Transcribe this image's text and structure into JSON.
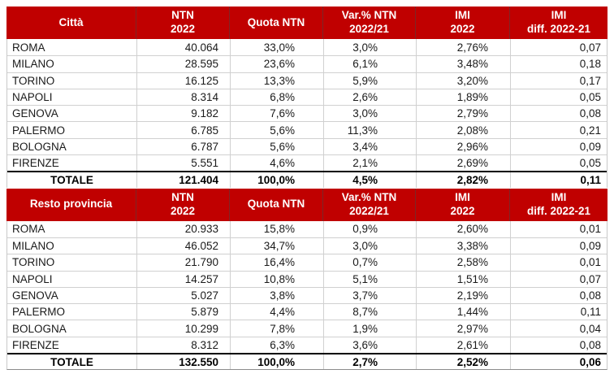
{
  "colors": {
    "header_bg": "#C00000",
    "header_text": "#FFFFFF",
    "body_text": "#1A1A1A",
    "grid_line": "#D0D0D0",
    "total_border": "#000000"
  },
  "tables": [
    {
      "name": "citta",
      "columns": [
        {
          "l1": "Città",
          "l2": ""
        },
        {
          "l1": "NTN",
          "l2": "2022"
        },
        {
          "l1": "Quota NTN",
          "l2": ""
        },
        {
          "l1": "Var.% NTN",
          "l2": "2022/21"
        },
        {
          "l1": "IMI",
          "l2": "2022"
        },
        {
          "l1": "IMI",
          "l2": "diff. 2022-21"
        }
      ],
      "rows": [
        [
          "ROMA",
          "40.064",
          "33,0%",
          "3,0%",
          "2,76%",
          "0,07"
        ],
        [
          "MILANO",
          "28.595",
          "23,6%",
          "6,1%",
          "3,48%",
          "0,18"
        ],
        [
          "TORINO",
          "16.125",
          "13,3%",
          "5,9%",
          "3,20%",
          "0,17"
        ],
        [
          "NAPOLI",
          "8.314",
          "6,8%",
          "2,6%",
          "1,89%",
          "0,05"
        ],
        [
          "GENOVA",
          "9.182",
          "7,6%",
          "3,0%",
          "2,79%",
          "0,08"
        ],
        [
          "PALERMO",
          "6.785",
          "5,6%",
          "11,3%",
          "2,08%",
          "0,21"
        ],
        [
          "BOLOGNA",
          "6.787",
          "5,6%",
          "3,4%",
          "2,96%",
          "0,09"
        ],
        [
          "FIRENZE",
          "5.551",
          "4,6%",
          "2,1%",
          "2,69%",
          "0,05"
        ]
      ],
      "total": [
        "TOTALE",
        "121.404",
        "100,0%",
        "4,5%",
        "2,82%",
        "0,11"
      ]
    },
    {
      "name": "resto-provincia",
      "columns": [
        {
          "l1": "Resto provincia",
          "l2": ""
        },
        {
          "l1": "NTN",
          "l2": "2022"
        },
        {
          "l1": "Quota NTN",
          "l2": ""
        },
        {
          "l1": "Var.% NTN",
          "l2": "2022/21"
        },
        {
          "l1": "IMI",
          "l2": "2022"
        },
        {
          "l1": "IMI",
          "l2": "diff. 2022-21"
        }
      ],
      "rows": [
        [
          "ROMA",
          "20.933",
          "15,8%",
          "0,9%",
          "2,60%",
          "0,01"
        ],
        [
          "MILANO",
          "46.052",
          "34,7%",
          "3,0%",
          "3,38%",
          "0,09"
        ],
        [
          "TORINO",
          "21.790",
          "16,4%",
          "0,7%",
          "2,58%",
          "0,01"
        ],
        [
          "NAPOLI",
          "14.257",
          "10,8%",
          "5,1%",
          "1,51%",
          "0,07"
        ],
        [
          "GENOVA",
          "5.027",
          "3,8%",
          "3,7%",
          "2,19%",
          "0,08"
        ],
        [
          "PALERMO",
          "5.879",
          "4,4%",
          "8,7%",
          "1,44%",
          "0,11"
        ],
        [
          "BOLOGNA",
          "10.299",
          "7,8%",
          "1,9%",
          "2,97%",
          "0,04"
        ],
        [
          "FIRENZE",
          "8.312",
          "6,3%",
          "3,6%",
          "2,61%",
          "0,08"
        ]
      ],
      "total": [
        "TOTALE",
        "132.550",
        "100,0%",
        "2,7%",
        "2,52%",
        "0,06"
      ]
    }
  ]
}
